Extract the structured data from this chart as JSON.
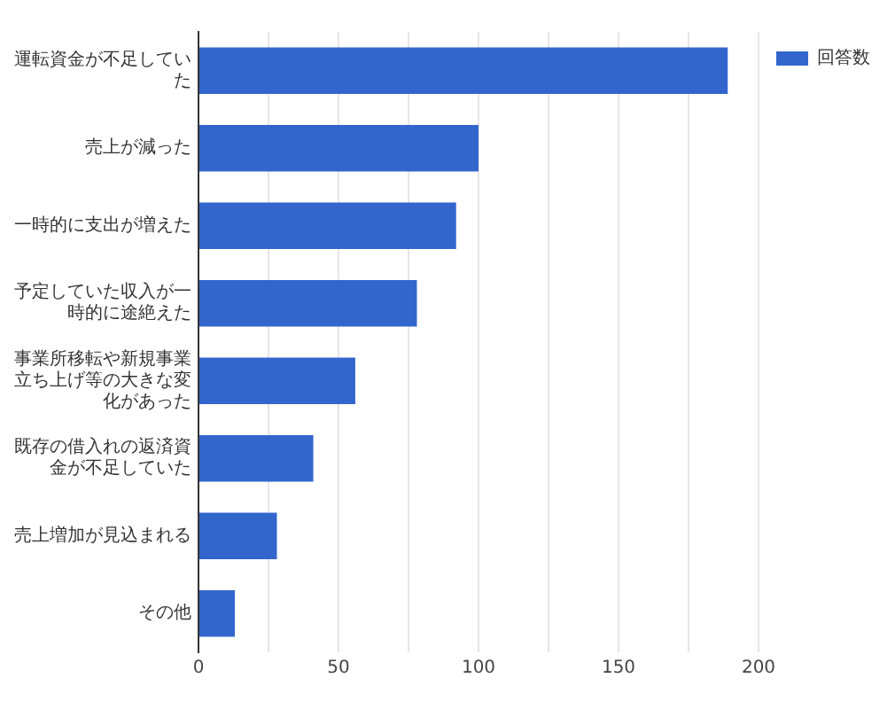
{
  "chart_data": {
    "type": "bar",
    "orientation": "horizontal",
    "categories": [
      "運転資金が不足していた",
      "売上が減った",
      "一時的に支出が増えた",
      "予定していた収入が一時的に途絶えた",
      "事業所移転や新規事業立ち上げ等の大きな変化があった",
      "既存の借入れの返済資金が不足していた",
      "売上増加が見込まれる",
      "その他"
    ],
    "series": [
      {
        "name": "回答数",
        "color": "#3366cc",
        "values": [
          189,
          100,
          92,
          78,
          56,
          41,
          28,
          13
        ]
      }
    ],
    "xlim": [
      0,
      200
    ],
    "xticks": [
      0,
      {
        "value": 25,
        "label": null
      },
      50,
      {
        "value": 75,
        "label": null
      },
      100,
      {
        "value": 125,
        "label": null
      },
      150,
      {
        "value": 175,
        "label": null
      },
      200
    ],
    "grid": "x",
    "legend": "top right"
  }
}
